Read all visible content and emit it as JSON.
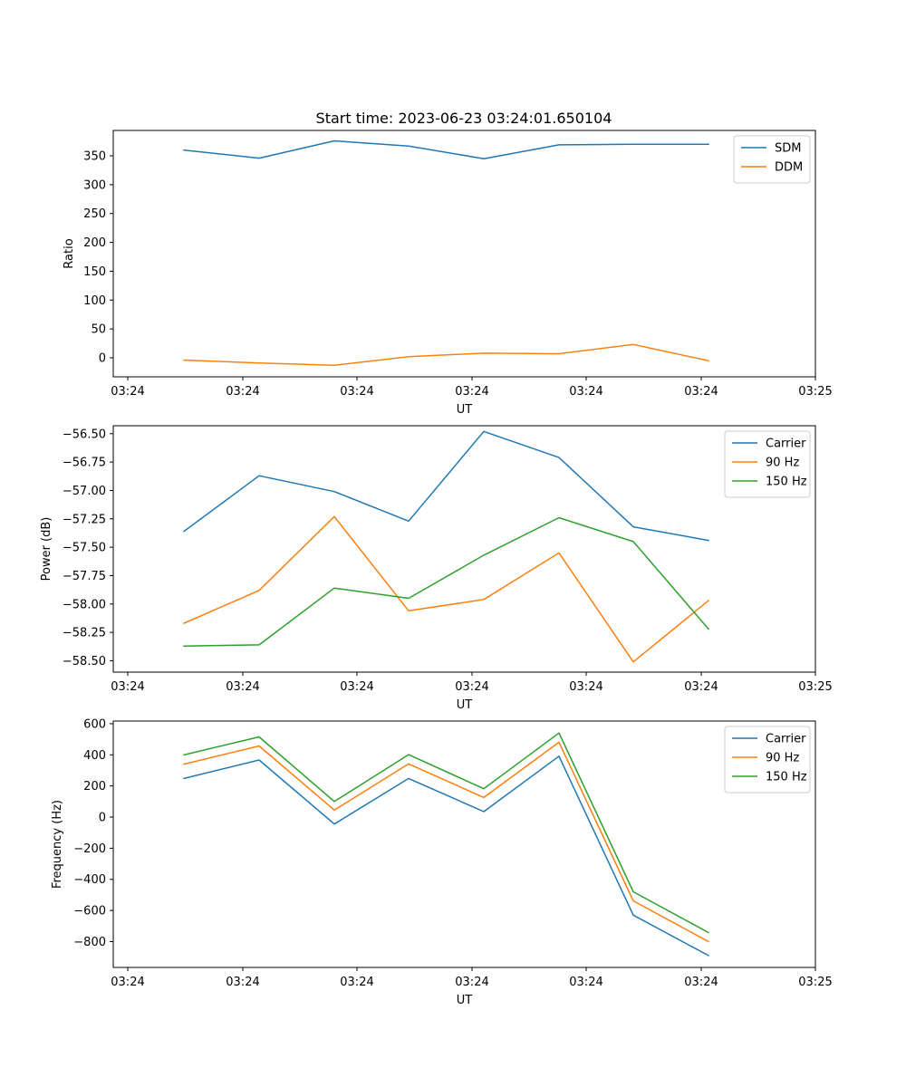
{
  "chart_data": [
    {
      "type": "line",
      "title": "Start time: 2023-06-23 03:24:01.650104",
      "xlabel": "UT",
      "ylabel": "Ratio",
      "x_tick_labels": [
        "03:24",
        "03:24",
        "03:24",
        "03:24",
        "03:24",
        "03:24",
        "03:24"
      ],
      "x_last_tick_label": "03:25",
      "yticks": [
        0,
        50,
        100,
        150,
        200,
        250,
        300,
        350
      ],
      "ylim": [
        -33,
        394
      ],
      "grid": false,
      "legend_position": "top-right",
      "series": [
        {
          "name": "SDM",
          "color": "#1f77b4",
          "values": [
            360,
            346,
            376,
            367,
            345,
            369,
            370,
            370
          ]
        },
        {
          "name": "DDM",
          "color": "#ff7f0e",
          "values": [
            -4,
            -9,
            -13,
            2,
            8,
            7,
            23,
            -5
          ]
        }
      ]
    },
    {
      "type": "line",
      "title": "",
      "xlabel": "UT",
      "ylabel": "Power (dB)",
      "x_tick_labels": [
        "03:24",
        "03:24",
        "03:24",
        "03:24",
        "03:24",
        "03:24",
        "03:24"
      ],
      "x_last_tick_label": "03:25",
      "yticks": [
        -58.5,
        -58.25,
        -58.0,
        -57.75,
        -57.5,
        -57.25,
        -57.0,
        -56.75,
        -56.5
      ],
      "ytick_labels": [
        "−58.50",
        "−58.25",
        "−58.00",
        "−57.75",
        "−57.50",
        "−57.25",
        "−57.00",
        "−56.75",
        "−56.50"
      ],
      "ylim": [
        -58.6,
        -56.43
      ],
      "grid": false,
      "legend_position": "top-right",
      "series": [
        {
          "name": "Carrier",
          "color": "#1f77b4",
          "values": [
            -57.36,
            -56.87,
            -57.01,
            -57.27,
            -56.48,
            -56.71,
            -57.32,
            -57.44
          ]
        },
        {
          "name": "90 Hz",
          "color": "#ff7f0e",
          "values": [
            -58.17,
            -57.88,
            -57.23,
            -58.06,
            -57.96,
            -57.55,
            -58.51,
            -57.97
          ]
        },
        {
          "name": "150 Hz",
          "color": "#2ca02c",
          "values": [
            -58.37,
            -58.36,
            -57.86,
            -57.95,
            -57.57,
            -57.24,
            -57.45,
            -58.22
          ]
        }
      ]
    },
    {
      "type": "line",
      "title": "",
      "xlabel": "UT",
      "ylabel": "Frequency (Hz)",
      "x_tick_labels": [
        "03:24",
        "03:24",
        "03:24",
        "03:24",
        "03:24",
        "03:24",
        "03:24"
      ],
      "x_last_tick_label": "03:25",
      "yticks": [
        -800,
        -600,
        -400,
        -200,
        0,
        200,
        400,
        600
      ],
      "ytick_labels": [
        "−800",
        "−600",
        "−400",
        "−200",
        "0",
        "200",
        "400",
        "600"
      ],
      "ylim": [
        -966,
        617
      ],
      "grid": false,
      "legend_position": "top-right",
      "series": [
        {
          "name": "Carrier",
          "color": "#1f77b4",
          "values": [
            248,
            367,
            -45,
            248,
            35,
            391,
            -630,
            -890
          ]
        },
        {
          "name": "90 Hz",
          "color": "#ff7f0e",
          "values": [
            340,
            457,
            45,
            342,
            126,
            481,
            -538,
            -800
          ]
        },
        {
          "name": "150 Hz",
          "color": "#2ca02c",
          "values": [
            400,
            515,
            100,
            401,
            182,
            540,
            -480,
            -742
          ]
        }
      ]
    }
  ]
}
